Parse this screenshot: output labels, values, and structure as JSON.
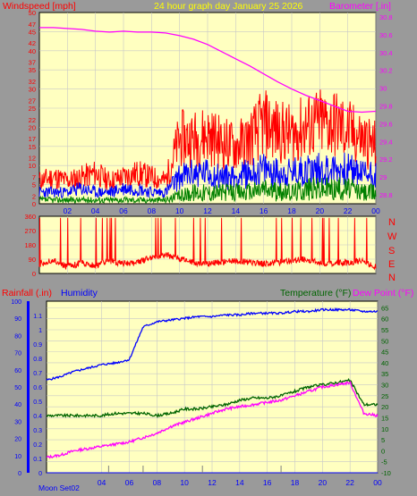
{
  "header": {
    "title": "24 hour graph day   January 25 2026",
    "wind_label": "Windspeed [mph]",
    "baro_label": "Barometer [.in]"
  },
  "colors": {
    "plot_bg": "#ffffc0",
    "frame_bg": "#9a9a9a",
    "wind_gust": "#ff0000",
    "wind_avg": "#0000ff",
    "wind_low": "#008000",
    "barometer": "#ff00ff",
    "humidity": "#0000ff",
    "temperature": "#006400",
    "dewpoint": "#ff00ff",
    "rain": "#0000ff"
  },
  "direction_letters": [
    "N",
    "W",
    "S",
    "E",
    "N"
  ],
  "bottom_header": {
    "rain_label": "Rainfall (.in)",
    "humidity_label": "Humidity",
    "temp_label": "Temperature (°F)",
    "dew_label": "Dew Point (°F)"
  },
  "moon_label": "Moon Set02",
  "chart_data": [
    {
      "type": "line",
      "name": "wind-barometer",
      "x_ticks": [
        "02",
        "04",
        "06",
        "08",
        "10",
        "12",
        "14",
        "16",
        "18",
        "20",
        "22",
        "00"
      ],
      "y_left_ticks": [
        "0",
        "2",
        "5",
        "7",
        "10",
        "12",
        "15",
        "17",
        "20",
        "22",
        "25",
        "27",
        "30",
        "32",
        "35",
        "37",
        "40",
        "42",
        "45",
        "47",
        "50"
      ],
      "y_left_major": [
        "0",
        "5",
        "10",
        "15",
        "20",
        "25",
        "30",
        "35",
        "40",
        "45",
        "50"
      ],
      "ylim_left": [
        0,
        50
      ],
      "y_right_ticks": [
        "28.8",
        "29",
        "29.2",
        "29.4",
        "29.6",
        "29.8",
        "30",
        "30.2",
        "30.4",
        "30.6",
        "30.8"
      ],
      "ylim_right": [
        28.7,
        30.85
      ],
      "series": [
        {
          "name": "Windspeed",
          "axis": "left",
          "role": "gust",
          "x": [
            0,
            1,
            2,
            3,
            4,
            5,
            6,
            7,
            8,
            9,
            10,
            11,
            12,
            13,
            14,
            15,
            16,
            17,
            18,
            19,
            20,
            21,
            22,
            23,
            24
          ],
          "values": [
            6,
            7,
            6,
            7,
            8,
            6,
            7,
            8,
            7,
            6,
            17,
            17,
            18,
            16,
            15,
            17,
            21,
            19,
            18,
            20,
            21,
            21,
            19,
            17,
            15
          ]
        },
        {
          "name": "Windspeed",
          "axis": "left",
          "role": "average",
          "x": [
            0,
            1,
            2,
            3,
            4,
            5,
            6,
            7,
            8,
            9,
            10,
            11,
            12,
            13,
            14,
            15,
            16,
            17,
            18,
            19,
            20,
            21,
            22,
            23,
            24
          ],
          "values": [
            3,
            3,
            3,
            4,
            3,
            3,
            4,
            4,
            3,
            3,
            7,
            8,
            8,
            7,
            7,
            8,
            9,
            8,
            8,
            9,
            9,
            9,
            9,
            8,
            8
          ]
        },
        {
          "name": "Windspeed",
          "axis": "left",
          "role": "low",
          "x": [
            0,
            1,
            2,
            3,
            4,
            5,
            6,
            7,
            8,
            9,
            10,
            11,
            12,
            13,
            14,
            15,
            16,
            17,
            18,
            19,
            20,
            21,
            22,
            23,
            24
          ],
          "values": [
            1,
            1,
            1,
            1,
            1,
            1,
            1,
            1,
            1,
            1,
            2,
            3,
            3,
            3,
            3,
            3,
            4,
            3,
            3,
            4,
            4,
            4,
            4,
            3,
            3
          ]
        },
        {
          "name": "Barometer",
          "axis": "right",
          "x": [
            0,
            1,
            2,
            3,
            4,
            5,
            6,
            7,
            8,
            9,
            10,
            11,
            12,
            13,
            14,
            15,
            16,
            17,
            18,
            19,
            20,
            21,
            22,
            23,
            24
          ],
          "values": [
            30.68,
            30.68,
            30.67,
            30.66,
            30.64,
            30.63,
            30.64,
            30.63,
            30.63,
            30.62,
            30.59,
            30.55,
            30.49,
            30.41,
            30.33,
            30.25,
            30.16,
            30.07,
            29.99,
            29.92,
            29.86,
            29.8,
            29.74,
            29.73,
            29.74
          ]
        }
      ]
    },
    {
      "type": "scatter",
      "name": "wind-direction",
      "x_ticks": [
        "02",
        "04",
        "06",
        "08",
        "10",
        "12",
        "14",
        "16",
        "18",
        "20",
        "22",
        "00"
      ],
      "y_ticks": [
        "0",
        "90",
        "180",
        "270",
        "360"
      ],
      "ylim": [
        0,
        360
      ],
      "x": [
        0,
        1,
        2,
        3,
        4,
        5,
        6,
        7,
        8,
        9,
        10,
        11,
        12,
        13,
        14,
        15,
        16,
        17,
        18,
        19,
        20,
        21,
        22,
        23,
        24
      ],
      "values": [
        60,
        80,
        40,
        70,
        50,
        80,
        60,
        70,
        100,
        120,
        90,
        70,
        60,
        70,
        80,
        70,
        60,
        70,
        80,
        90,
        70,
        60,
        70,
        80,
        40
      ]
    },
    {
      "type": "line",
      "name": "temp-humidity-rain",
      "x_ticks": [
        "04",
        "06",
        "08",
        "10",
        "12",
        "14",
        "16",
        "18",
        "20",
        "22",
        "00"
      ],
      "y_rain_ticks": [
        "0",
        "0.1",
        "0.2",
        "0.3",
        "0.4",
        "0.5",
        "0.6",
        "0.7",
        "0.8",
        "0.9",
        "1",
        "1.1"
      ],
      "ylim_rain": [
        0,
        1.2
      ],
      "y_humidity_ticks": [
        "0",
        "10",
        "20",
        "30",
        "40",
        "50",
        "60",
        "70",
        "80",
        "90",
        "100"
      ],
      "ylim_humidity": [
        0,
        100
      ],
      "y_temp_ticks": [
        "-10",
        "-5",
        "0",
        "5",
        "10",
        "15",
        "20",
        "25",
        "30",
        "35",
        "40",
        "45",
        "50",
        "55",
        "60",
        "65"
      ],
      "ylim_temp": [
        -10,
        68
      ],
      "series": [
        {
          "name": "Humidity",
          "axis": "humidity",
          "x": [
            0,
            1,
            2,
            3,
            4,
            5,
            6,
            7,
            8,
            9,
            10,
            11,
            12,
            13,
            14,
            15,
            16,
            17,
            18,
            19,
            20,
            21,
            22,
            23,
            24
          ],
          "values": [
            54,
            56,
            59,
            61,
            63,
            64,
            66,
            85,
            88,
            89,
            90,
            91,
            91,
            92,
            92,
            93,
            93,
            93,
            94,
            94,
            95,
            95,
            95,
            94,
            94
          ]
        },
        {
          "name": "Temperature",
          "axis": "temp",
          "x": [
            0,
            1,
            2,
            3,
            4,
            5,
            6,
            7,
            8,
            9,
            10,
            11,
            12,
            13,
            14,
            15,
            16,
            17,
            18,
            19,
            20,
            21,
            22,
            23,
            24
          ],
          "values": [
            16,
            16,
            16,
            16,
            16,
            17,
            17,
            17,
            16,
            17,
            19,
            19,
            20,
            21,
            23,
            24,
            24,
            25,
            27,
            29,
            30,
            31,
            32,
            21,
            21
          ]
        },
        {
          "name": "Dew Point",
          "axis": "temp",
          "x": [
            0,
            1,
            2,
            3,
            4,
            5,
            6,
            7,
            8,
            9,
            10,
            11,
            12,
            13,
            14,
            15,
            16,
            17,
            18,
            19,
            20,
            21,
            22,
            23,
            24
          ],
          "values": [
            -3,
            -2,
            0,
            1,
            2,
            3,
            4,
            6,
            8,
            11,
            13,
            15,
            17,
            19,
            20,
            21,
            22,
            23,
            25,
            27,
            29,
            30,
            31,
            17,
            16
          ]
        },
        {
          "name": "Rainfall",
          "axis": "rain",
          "x": [
            0,
            1,
            2,
            3,
            4,
            5,
            6,
            7,
            8,
            9,
            10,
            11,
            12,
            13,
            14,
            15,
            16,
            17,
            18,
            19,
            20,
            21,
            22,
            23,
            24
          ],
          "values": [
            0,
            0,
            0,
            0,
            0,
            0,
            0,
            0,
            0,
            0,
            0,
            0,
            0,
            0,
            0,
            0,
            0,
            0,
            0,
            0,
            0,
            0,
            0,
            0,
            0
          ]
        }
      ]
    }
  ]
}
